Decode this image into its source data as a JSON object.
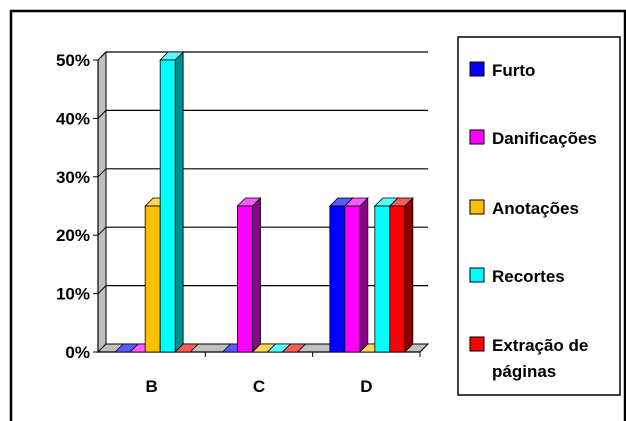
{
  "chart_data": {
    "type": "bar",
    "title": "",
    "xlabel": "",
    "ylabel": "",
    "categories": [
      "B",
      "C",
      "D"
    ],
    "ylim": [
      0,
      0.5
    ],
    "yticks": [
      0,
      0.1,
      0.2,
      0.3,
      0.4,
      0.5
    ],
    "ytick_labels": [
      "0%",
      "10%",
      "20%",
      "30%",
      "40%",
      "50%"
    ],
    "grid": true,
    "legend_position": "right",
    "three_d": true,
    "series": [
      {
        "name": "Furto",
        "color": "#0000ff",
        "values": [
          0,
          0,
          0.25
        ]
      },
      {
        "name": "Danificações",
        "color": "#ff00ff",
        "values": [
          0,
          0.25,
          0.25
        ]
      },
      {
        "name": "Anotações",
        "color": "#ffc000",
        "values": [
          0.25,
          0,
          0
        ]
      },
      {
        "name": "Recortes",
        "color": "#00ffff",
        "values": [
          0.5,
          0,
          0.25
        ]
      },
      {
        "name": "Extração de páginas",
        "legend_lines": [
          "Extração de",
          "páginas"
        ],
        "color": "#ff0000",
        "values": [
          0,
          0,
          0.25
        ]
      }
    ]
  }
}
